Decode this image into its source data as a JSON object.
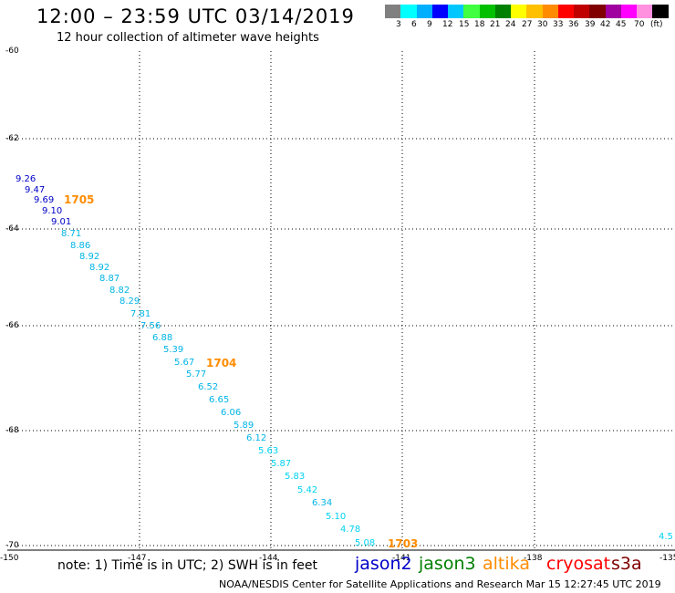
{
  "header": {
    "title": "12:00 – 23:59 UTC 03/14/2019",
    "subtitle": "12 hour collection of altimeter wave heights"
  },
  "scale": {
    "colors": [
      "#808080",
      "#00ffff",
      "#00b0ff",
      "#0000ff",
      "#00c8ff",
      "#40ff40",
      "#00c000",
      "#008000",
      "#ffff00",
      "#ffc000",
      "#ff8c00",
      "#ff0000",
      "#c00000",
      "#800000",
      "#a000a0",
      "#ff00ff",
      "#ff90e0",
      "#000000"
    ],
    "labels": [
      "3",
      "6",
      "9",
      "12",
      "15",
      "18",
      "21",
      "24",
      "27",
      "30",
      "33",
      "36",
      "39",
      "42",
      "45",
      "70",
      "(ft)"
    ]
  },
  "map": {
    "lat_labels": [
      "-60",
      "-62",
      "-64",
      "-66",
      "-68",
      "-70"
    ],
    "lon_labels": [
      "-150",
      "-147",
      "-144",
      "-141",
      "-138",
      "-135"
    ],
    "observations": [
      {
        "v": "9.26",
        "c": "#0000c8"
      },
      {
        "v": "9.47",
        "c": "#0000c8"
      },
      {
        "v": "9.69",
        "c": "#0000c8"
      },
      {
        "v": "9.10",
        "c": "#0000c8"
      },
      {
        "v": "9.01",
        "c": "#0000c8"
      },
      {
        "v": "8.71",
        "c": "#00b4e6"
      },
      {
        "v": "8.86",
        "c": "#00b4e6"
      },
      {
        "v": "8.92",
        "c": "#00b4e6"
      },
      {
        "v": "8.92",
        "c": "#00b4e6"
      },
      {
        "v": "8.87",
        "c": "#00b4e6"
      },
      {
        "v": "8.82",
        "c": "#00b4e6"
      },
      {
        "v": "8.29",
        "c": "#00b4e6"
      },
      {
        "v": "7.81",
        "c": "#00b4e6"
      },
      {
        "v": "7.56",
        "c": "#00b4e6"
      },
      {
        "v": "6.88",
        "c": "#00b4e6"
      },
      {
        "v": "5.39",
        "c": "#00b4e6"
      },
      {
        "v": "5.67",
        "c": "#00b4e6"
      },
      {
        "v": "5.77",
        "c": "#00b4e6"
      },
      {
        "v": "6.52",
        "c": "#00b4e6"
      },
      {
        "v": "6.65",
        "c": "#00b4e6"
      },
      {
        "v": "6.06",
        "c": "#00b4e6"
      },
      {
        "v": "5.89",
        "c": "#00b4e6"
      },
      {
        "v": "6.12",
        "c": "#00b4e6"
      },
      {
        "v": "5.63",
        "c": "#00d2f0"
      },
      {
        "v": "5.87",
        "c": "#00d2f0"
      },
      {
        "v": "5.83",
        "c": "#00d2f0"
      },
      {
        "v": "5.42",
        "c": "#00d2f0"
      },
      {
        "v": "6.34",
        "c": "#00b4e6"
      },
      {
        "v": "5.10",
        "c": "#00d2f0"
      },
      {
        "v": "4.78",
        "c": "#00d2f0"
      },
      {
        "v": "5.08",
        "c": "#00d2f0"
      },
      {
        "v": "4.5",
        "c": "#00d2f0"
      }
    ],
    "passes": [
      "1705",
      "1704",
      "1703"
    ],
    "pass_color": "#ff8c00"
  },
  "legend": {
    "note": "note: 1) Time is in UTC; 2) SWH is in feet",
    "satellites": [
      {
        "name": "jason2",
        "color": "#0000c8"
      },
      {
        "name": "jason3",
        "color": "#008000"
      },
      {
        "name": "altika",
        "color": "#ff8c00"
      },
      {
        "name": "cryosat",
        "color": "#ff0000"
      },
      {
        "name": "s3a",
        "color": "#800000"
      }
    ]
  },
  "footer": "NOAA/NESDIS Center for Satellite Applications and Research    Mar 15 12:27:45 UTC 2019"
}
